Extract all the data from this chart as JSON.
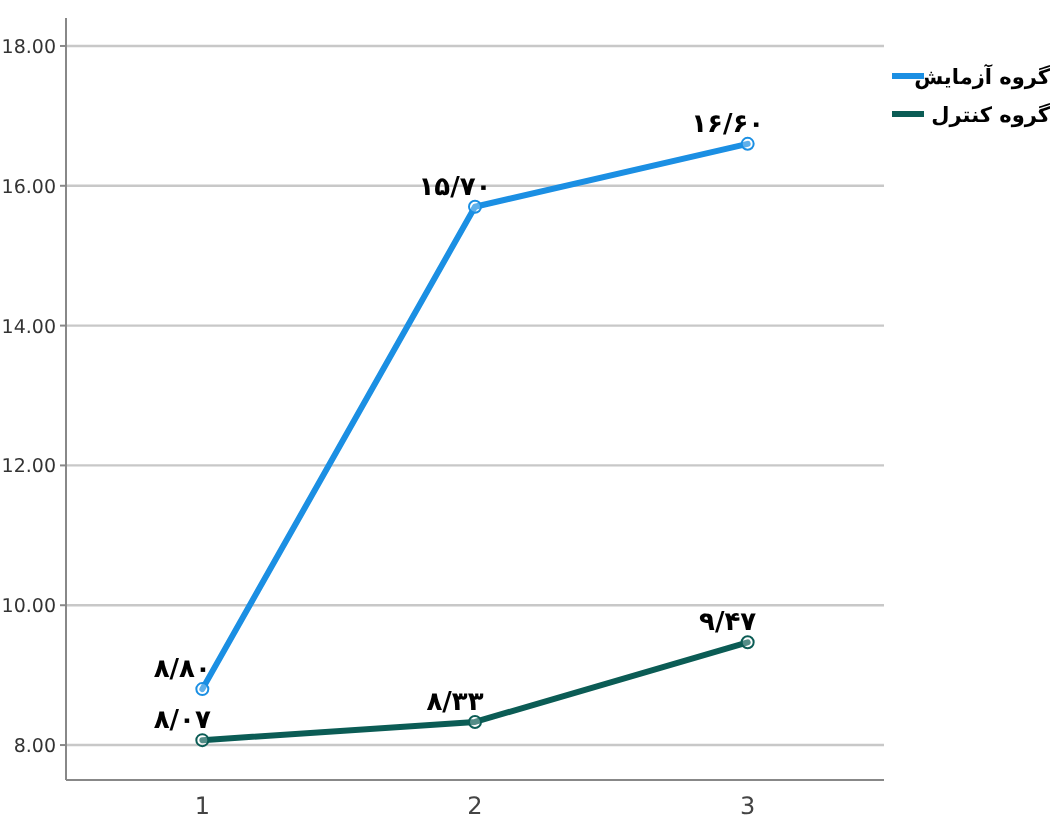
{
  "chart_data": {
    "type": "line",
    "categories": [
      "1",
      "2",
      "3"
    ],
    "series": [
      {
        "name": "گروه آزمایش",
        "color": "#1b8fe3",
        "values": [
          8.8,
          15.7,
          16.6
        ],
        "value_labels": [
          "۸/۸۰",
          "۱۵/۷۰",
          "۱۶/۶۰"
        ]
      },
      {
        "name": "گروه کنترل",
        "color": "#0b5c55",
        "values": [
          8.07,
          8.33,
          9.47
        ],
        "value_labels": [
          "۸/۰۷",
          "۸/۳۳",
          "۹/۴۷"
        ]
      }
    ],
    "ylim": [
      7.5,
      18.4
    ],
    "yticks": [
      {
        "value": 8,
        "label": "8.00"
      },
      {
        "value": 10,
        "label": "10.00"
      },
      {
        "value": 12,
        "label": "12.00"
      },
      {
        "value": 14,
        "label": "14.00"
      },
      {
        "value": 16,
        "label": "16.00"
      },
      {
        "value": 18,
        "label": "18.00"
      }
    ],
    "grid": "y",
    "legend": "top right",
    "marker": "circle"
  }
}
